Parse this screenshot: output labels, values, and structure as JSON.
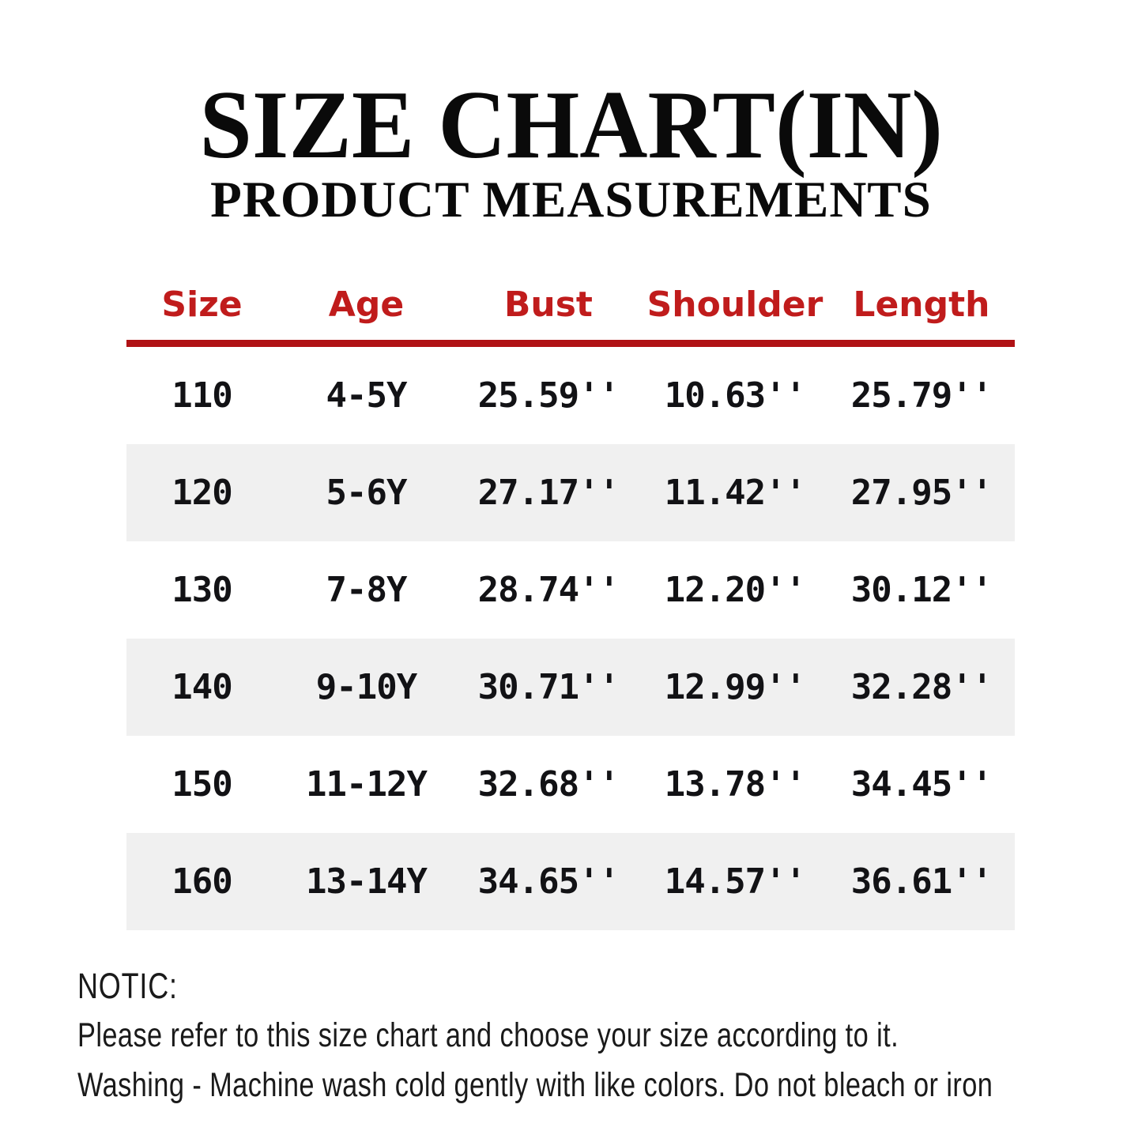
{
  "title": "SIZE CHART(IN)",
  "subtitle": "PRODUCT MEASUREMENTS",
  "chart_data": {
    "type": "table",
    "title": "SIZE CHART(IN)",
    "subtitle": "PRODUCT MEASUREMENTS",
    "unit": "inches",
    "columns": [
      "Size",
      "Age",
      "Bust",
      "Shoulder",
      "Length"
    ],
    "rows": [
      [
        "110",
        "4-5Y",
        "25.59''",
        "10.63''",
        "25.79''"
      ],
      [
        "120",
        "5-6Y",
        "27.17''",
        "11.42''",
        "27.95''"
      ],
      [
        "130",
        "7-8Y",
        "28.74''",
        "12.20''",
        "30.12''"
      ],
      [
        "140",
        "9-10Y",
        "30.71''",
        "12.99''",
        "32.28''"
      ],
      [
        "150",
        "11-12Y",
        "32.68''",
        "13.78''",
        "34.45''"
      ],
      [
        "160",
        "13-14Y",
        "34.65''",
        "14.57''",
        "36.61''"
      ]
    ],
    "layout": {
      "header_text_color": "#c01c1c",
      "rule_color": "#b01215",
      "stripe_color": "#f0f0f0",
      "striped_row_indexes": [
        1,
        3,
        5
      ],
      "legend": "none",
      "grid": "off"
    }
  },
  "notes": {
    "heading": "NOTIC:",
    "line1": "Please refer to this size chart and choose your size according to it.",
    "line2": "Washing - Machine wash cold gently with like colors. Do not bleach or iron"
  }
}
